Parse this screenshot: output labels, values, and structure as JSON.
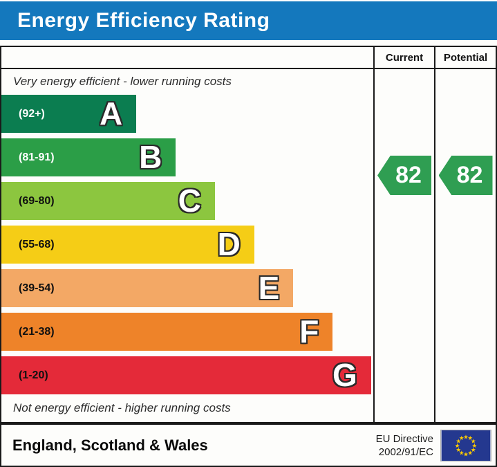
{
  "title_bar": {
    "title": "Energy Efficiency Rating",
    "bg": "#1478bd",
    "fg": "#ffffff"
  },
  "table": {
    "columns": {
      "current": "Current",
      "potential": "Potential"
    },
    "caption_top": "Very energy efficient - lower running costs",
    "caption_bottom": "Not energy efficient - higher running costs"
  },
  "chart_data": {
    "type": "bar",
    "title": "Energy Efficiency Rating",
    "bands": [
      {
        "letter": "A",
        "range": "(92+)",
        "score_min": 92,
        "score_max": 100,
        "color": "#0b7d50",
        "label_color": "#ffffff",
        "width_pct": 36.3
      },
      {
        "letter": "B",
        "range": "(81-91)",
        "score_min": 81,
        "score_max": 91,
        "color": "#2b9e47",
        "label_color": "#ffffff",
        "width_pct": 46.9
      },
      {
        "letter": "C",
        "range": "(69-80)",
        "score_min": 69,
        "score_max": 80,
        "color": "#8cc63f",
        "label_color": "#101010",
        "width_pct": 57.4
      },
      {
        "letter": "D",
        "range": "(55-68)",
        "score_min": 55,
        "score_max": 68,
        "color": "#f5cd16",
        "label_color": "#101010",
        "width_pct": 68.0
      },
      {
        "letter": "E",
        "range": "(39-54)",
        "score_min": 39,
        "score_max": 54,
        "color": "#f3a865",
        "label_color": "#101010",
        "width_pct": 78.5
      },
      {
        "letter": "F",
        "range": "(21-38)",
        "score_min": 21,
        "score_max": 38,
        "color": "#ee8329",
        "label_color": "#101010",
        "width_pct": 89.1
      },
      {
        "letter": "G",
        "range": "(1-20)",
        "score_min": 1,
        "score_max": 20,
        "color": "#e42a39",
        "label_color": "#101010",
        "width_pct": 99.4
      }
    ],
    "current": {
      "value": "82",
      "band": "B",
      "color": "#2f9e52"
    },
    "potential": {
      "value": "82",
      "band": "B",
      "color": "#2f9e52"
    }
  },
  "footer": {
    "region": "England, Scotland & Wales",
    "directive_line1": "EU Directive",
    "directive_line2": "2002/91/EC",
    "eu_flag": {
      "bg": "#24388f",
      "star_color": "#ffcc00",
      "stars": 12
    }
  }
}
